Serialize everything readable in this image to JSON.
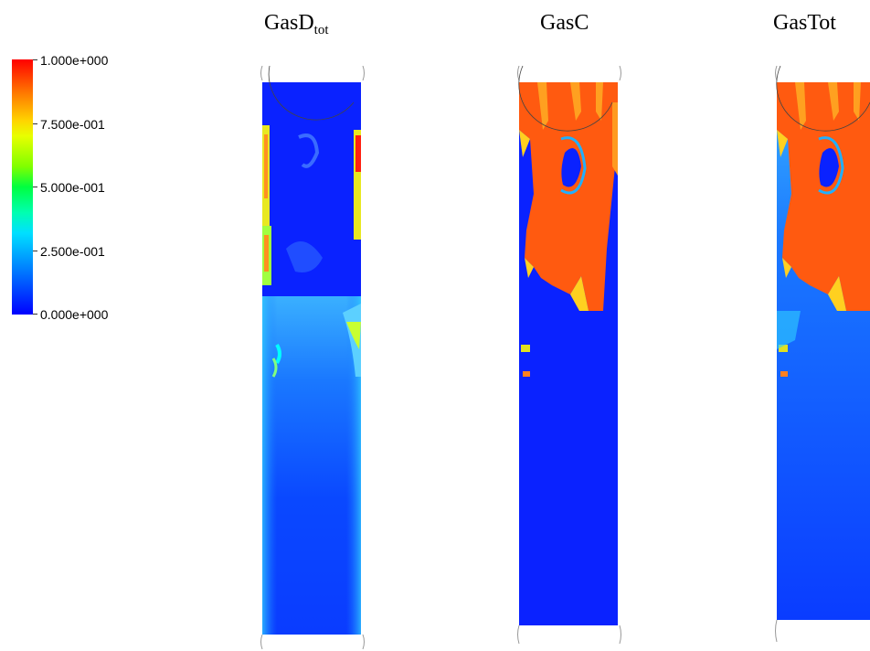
{
  "panels": [
    {
      "title": "GasD",
      "subscript": "tot"
    },
    {
      "title": "GasC",
      "subscript": ""
    },
    {
      "title": "GasTot",
      "subscript": ""
    }
  ],
  "legend": {
    "labels": [
      "1.000e+000",
      "7.500e-001",
      "5.000e-001",
      "2.500e-001",
      "0.000e+000"
    ],
    "colors": [
      "#ff0000",
      "#ffff00",
      "#00ff00",
      "#00ffff",
      "#0000ff"
    ]
  }
}
